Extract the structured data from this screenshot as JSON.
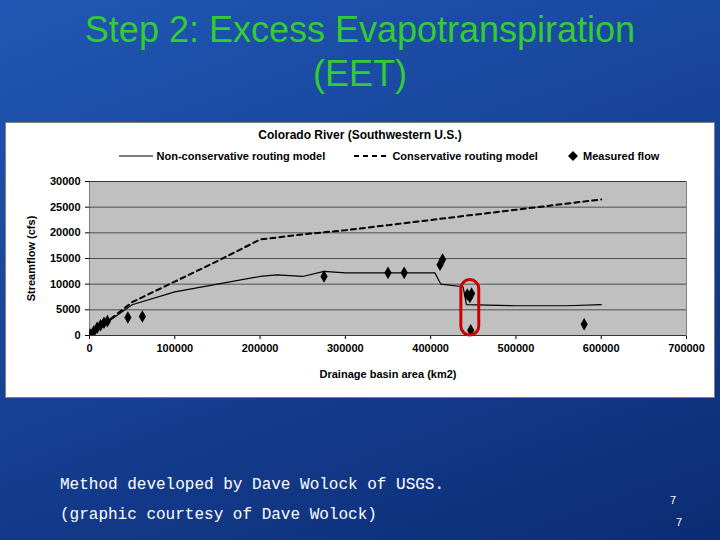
{
  "slide_title_lines": [
    "Step 2: Excess Evapotranspiration",
    "(EET)"
  ],
  "caption": [
    "Method developed by Dave Wolock of USGS.",
    "(graphic courtesy of Dave Wolock)"
  ],
  "page_numbers": [
    "7",
    "7"
  ],
  "chart_data": {
    "type": "line",
    "title": "Colorado River (Southwestern U.S.)",
    "x_label": "Drainage basin area (km2)",
    "y_label": "Streamflow (cfs)",
    "xlim": [
      0,
      700000
    ],
    "xticks": [
      0,
      100000,
      200000,
      300000,
      400000,
      500000,
      600000,
      700000
    ],
    "ylim": [
      0,
      30000
    ],
    "yticks": [
      0,
      5000,
      10000,
      15000,
      20000,
      25000,
      30000
    ],
    "grid": true,
    "legend": "top",
    "series": [
      {
        "name": "Non-conservative routing model",
        "type": "line",
        "line_style": "solid",
        "color": "#000000",
        "x": [
          0,
          20000,
          50000,
          100000,
          150000,
          200000,
          220000,
          250000,
          275000,
          300000,
          350000,
          405000,
          412000,
          438000,
          442000,
          500000,
          560000,
          600000
        ],
        "values": [
          0,
          2500,
          6000,
          8500,
          10000,
          11500,
          11800,
          11500,
          12500,
          12200,
          12200,
          12200,
          10000,
          9500,
          6000,
          5800,
          5800,
          6000
        ]
      },
      {
        "name": "Conservative routing model",
        "type": "line",
        "line_style": "dashed",
        "color": "#000000",
        "x": [
          0,
          50000,
          100000,
          150000,
          200000,
          250000,
          300000,
          350000,
          400000,
          450000,
          500000,
          550000,
          600000
        ],
        "values": [
          0,
          6500,
          10500,
          14500,
          18700,
          19700,
          20500,
          21500,
          22500,
          23500,
          24500,
          25500,
          26500
        ]
      },
      {
        "name": "Measured flow",
        "type": "scatter",
        "marker": "diamond",
        "color": "#000000",
        "x": [
          1000,
          5000,
          9000,
          13000,
          17000,
          21000,
          45000,
          62000,
          275000,
          350000,
          369000,
          411000,
          414000,
          443000,
          446000,
          448000,
          447000,
          580000
        ],
        "values": [
          200,
          800,
          1500,
          2000,
          2500,
          2800,
          3500,
          3700,
          11500,
          12200,
          12200,
          13800,
          14800,
          8000,
          7500,
          8200,
          1000,
          2200
        ]
      }
    ],
    "highlight": {
      "color": "#cc0000",
      "x1": 436000,
      "x2": 457000,
      "y1": 0,
      "y2": 10800
    }
  }
}
